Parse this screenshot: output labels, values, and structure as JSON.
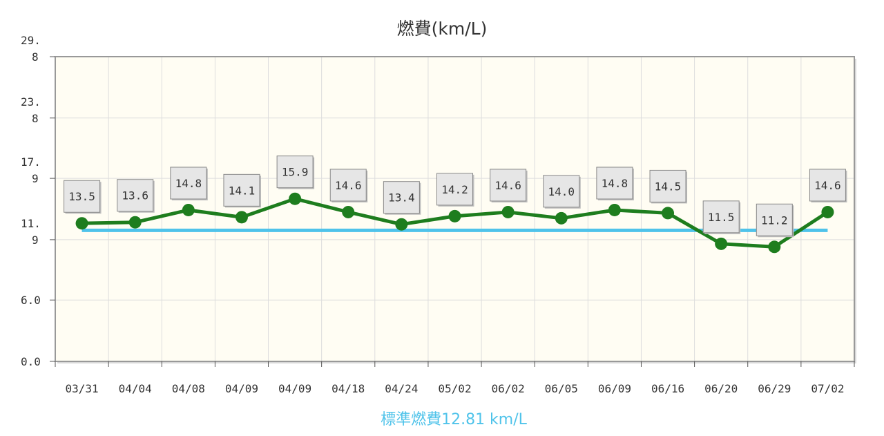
{
  "chart_data": {
    "type": "line",
    "title": "燃費(km/L)",
    "footer_label": "標準燃費12.81 km/L",
    "categories": [
      "03/31",
      "04/04",
      "04/08",
      "04/09",
      "04/09",
      "04/18",
      "04/24",
      "05/02",
      "06/02",
      "06/05",
      "06/09",
      "06/16",
      "06/20",
      "06/29",
      "07/02"
    ],
    "series": [
      {
        "values": [
          13.5,
          13.6,
          14.8,
          14.1,
          15.9,
          14.6,
          13.4,
          14.2,
          14.6,
          14.0,
          14.8,
          14.5,
          11.5,
          11.2,
          14.6
        ],
        "color": "#1e7d1e"
      }
    ],
    "data_labels": [
      "13.5",
      "13.6",
      "14.8",
      "14.1",
      "15.9",
      "14.6",
      "13.4",
      "14.2",
      "14.6",
      "14.0",
      "14.8",
      "14.5",
      "11.5",
      "11.2",
      "14.6"
    ],
    "reference_line": {
      "value": 12.81,
      "color": "#4fc3ea"
    },
    "y_ticks": [
      {
        "value": 0.0,
        "lines": [
          "0.0"
        ]
      },
      {
        "value": 6.0,
        "lines": [
          "6.0"
        ]
      },
      {
        "value": 11.9,
        "lines": [
          "11.",
          "9"
        ]
      },
      {
        "value": 17.9,
        "lines": [
          "17.",
          "9"
        ]
      },
      {
        "value": 23.8,
        "lines": [
          "23.",
          "8"
        ]
      },
      {
        "value": 29.8,
        "lines": [
          "29.",
          "8"
        ]
      }
    ],
    "ylim": [
      0,
      29.8
    ],
    "grid": true,
    "plot_background": "#fffdf3",
    "grid_color": "#dddddd",
    "axis_color": "#999999",
    "text_color": "#333333"
  }
}
